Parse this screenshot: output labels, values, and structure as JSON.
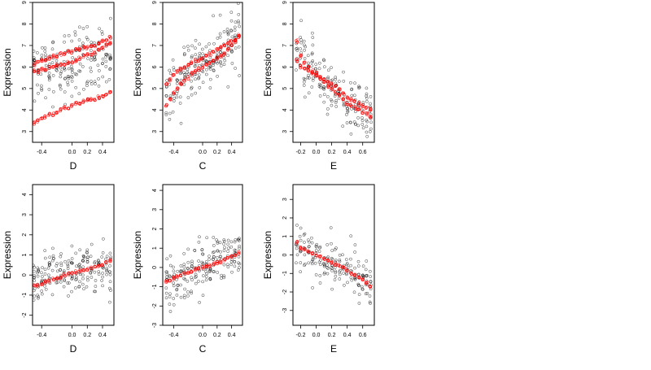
{
  "chart_data": [
    {
      "type": "scatter",
      "xlabel": "D",
      "ylabel": "Expression",
      "xlim": [
        -0.52,
        0.55
      ],
      "ylim": [
        2.5,
        9.0
      ],
      "xticks": [
        -0.4,
        0.0,
        0.2,
        0.4
      ],
      "xtick_labels": [
        "-0.4",
        "0.0",
        "0.2",
        "0.4"
      ],
      "yticks": [
        3,
        4,
        5,
        6,
        7,
        8,
        9
      ],
      "ytick_labels": [
        "3",
        "4",
        "5",
        "6",
        "7",
        "8",
        "9"
      ],
      "x_positions": [
        -0.5,
        -0.45,
        -0.4,
        -0.35,
        -0.3,
        -0.25,
        -0.2,
        -0.15,
        -0.1,
        -0.05,
        0.0,
        0.05,
        0.1,
        0.15,
        0.2,
        0.25,
        0.3,
        0.35,
        0.4,
        0.45,
        0.5
      ],
      "series": [
        {
          "color": "#000000",
          "role": "observed",
          "center": [
            6.0,
            6.0,
            5.9,
            6.0,
            6.0,
            6.0,
            6.1,
            6.0,
            6.0,
            6.1,
            6.0,
            6.0,
            6.2,
            6.3,
            6.2,
            6.3,
            6.4,
            6.3,
            6.5,
            6.2,
            6.6
          ],
          "spread": 1.4
        },
        {
          "color": "#ff0000",
          "role": "fitted",
          "lines": [
            [
              6.1,
              6.2,
              6.3,
              6.3,
              6.4,
              6.5,
              6.5,
              6.6,
              6.6,
              6.7,
              6.7,
              6.8,
              6.8,
              6.9,
              6.9,
              7.0,
              7.0,
              7.1,
              7.2,
              7.3,
              7.4
            ],
            [
              3.4,
              3.5,
              3.6,
              3.7,
              3.8,
              3.8,
              3.9,
              4.0,
              4.1,
              4.1,
              4.2,
              4.3,
              4.3,
              4.4,
              4.5,
              4.5,
              4.5,
              4.6,
              4.6,
              4.7,
              4.8
            ],
            [
              5.8,
              5.8,
              5.9,
              5.9,
              6.0,
              6.0,
              6.1,
              6.1,
              6.1,
              6.2,
              6.2,
              6.3,
              6.4,
              6.5,
              6.6,
              6.6,
              6.7,
              6.8,
              6.9,
              7.0,
              7.1
            ]
          ]
        }
      ]
    },
    {
      "type": "scatter",
      "xlabel": "C",
      "ylabel": "Expression",
      "xlim": [
        -0.55,
        0.55
      ],
      "ylim": [
        2.5,
        9.0
      ],
      "xticks": [
        -0.4,
        0.0,
        0.2,
        0.4
      ],
      "xtick_labels": [
        "-0.4",
        "0.0",
        "0.2",
        "0.4"
      ],
      "yticks": [
        3,
        4,
        5,
        6,
        7,
        8,
        9
      ],
      "ytick_labels": [
        "3",
        "4",
        "5",
        "6",
        "7",
        "8",
        "9"
      ],
      "x_positions": [
        -0.5,
        -0.45,
        -0.4,
        -0.35,
        -0.3,
        -0.25,
        -0.2,
        -0.15,
        -0.1,
        -0.05,
        0.0,
        0.05,
        0.1,
        0.15,
        0.2,
        0.25,
        0.3,
        0.35,
        0.4,
        0.45,
        0.5
      ],
      "series": [
        {
          "color": "#000000",
          "role": "observed",
          "center": [
            4.8,
            4.9,
            5.0,
            5.3,
            5.4,
            5.5,
            5.6,
            5.8,
            5.9,
            6.0,
            6.1,
            6.2,
            6.3,
            6.4,
            6.5,
            6.6,
            6.7,
            6.8,
            7.0,
            7.1,
            7.2
          ],
          "spread": 1.1
        },
        {
          "color": "#ff0000",
          "role": "fitted",
          "lines": [
            [
              4.2,
              4.5,
              4.8,
              5.0,
              5.2,
              5.4,
              5.5,
              5.7,
              5.8,
              5.9,
              6.0,
              6.1,
              6.2,
              6.3,
              6.4,
              6.5,
              6.6,
              6.8,
              7.0,
              7.2,
              7.4
            ],
            [
              5.2,
              5.4,
              5.6,
              5.8,
              5.9,
              6.0,
              6.1,
              6.2,
              6.3,
              6.3,
              6.4,
              6.5,
              6.6,
              6.7,
              6.8,
              6.9,
              7.0,
              7.1,
              7.2,
              7.3,
              7.5
            ]
          ]
        }
      ]
    },
    {
      "type": "scatter",
      "xlabel": "E",
      "ylabel": "Expression",
      "xlim": [
        -0.3,
        0.75
      ],
      "ylim": [
        2.5,
        9.0
      ],
      "xticks": [
        -0.2,
        0.0,
        0.2,
        0.4,
        0.6
      ],
      "xtick_labels": [
        "-0.2",
        "0.0",
        "0.2",
        "0.4",
        "0.6"
      ],
      "yticks": [
        3,
        4,
        5,
        6,
        7,
        8,
        9
      ],
      "ytick_labels": [
        "3",
        "4",
        "5",
        "6",
        "7",
        "8",
        "9"
      ],
      "x_positions": [
        -0.25,
        -0.2,
        -0.15,
        -0.1,
        -0.05,
        0.0,
        0.05,
        0.1,
        0.15,
        0.2,
        0.25,
        0.3,
        0.35,
        0.4,
        0.45,
        0.5,
        0.55,
        0.6,
        0.65,
        0.7
      ],
      "series": [
        {
          "color": "#000000",
          "role": "observed",
          "center": [
            6.8,
            6.4,
            6.2,
            6.0,
            5.8,
            5.6,
            5.4,
            5.2,
            5.1,
            5.0,
            4.8,
            4.6,
            4.5,
            4.3,
            4.2,
            4.1,
            4.0,
            4.0,
            3.9,
            3.8
          ],
          "spread": 1.2
        },
        {
          "color": "#ff0000",
          "role": "fitted",
          "lines": [
            [
              7.2,
              6.5,
              6.2,
              6.0,
              5.8,
              5.7,
              5.5,
              5.3,
              5.1,
              5.0,
              4.8,
              4.7,
              4.5,
              4.3,
              4.2,
              4.1,
              4.0,
              3.9,
              3.8,
              3.7
            ],
            [
              6.3,
              6.0,
              5.9,
              5.8,
              5.7,
              5.6,
              5.5,
              5.4,
              5.3,
              5.2,
              5.1,
              5.0,
              4.8,
              4.6,
              4.5,
              4.4,
              4.3,
              4.2,
              4.1,
              4.0
            ]
          ]
        }
      ]
    },
    {
      "type": "scatter",
      "xlabel": "D",
      "ylabel": "Expression",
      "xlim": [
        -0.52,
        0.55
      ],
      "ylim": [
        -2.5,
        4.5
      ],
      "xticks": [
        -0.4,
        0.0,
        0.2,
        0.4
      ],
      "xtick_labels": [
        "-0.4",
        "0.0",
        "0.2",
        "0.4"
      ],
      "yticks": [
        -2,
        -1,
        0,
        1,
        2,
        3,
        4
      ],
      "ytick_labels": [
        "-2",
        "-1",
        "0",
        "1",
        "2",
        "3",
        "4"
      ],
      "x_positions": [
        -0.5,
        -0.45,
        -0.4,
        -0.35,
        -0.3,
        -0.25,
        -0.2,
        -0.15,
        -0.1,
        -0.05,
        0.0,
        0.05,
        0.1,
        0.15,
        0.2,
        0.25,
        0.3,
        0.35,
        0.4,
        0.45,
        0.5
      ],
      "series": [
        {
          "color": "#000000",
          "role": "observed",
          "center": [
            -0.4,
            -0.4,
            -0.3,
            -0.2,
            -0.2,
            -0.1,
            -0.1,
            0.0,
            0.0,
            0.1,
            0.1,
            0.1,
            0.2,
            0.2,
            0.3,
            0.3,
            0.4,
            0.4,
            0.5,
            0.5,
            0.6
          ],
          "spread": 1.1
        },
        {
          "color": "#ff0000",
          "role": "fitted",
          "lines": [
            [
              -0.55,
              -0.5,
              -0.45,
              -0.35,
              -0.3,
              -0.2,
              -0.15,
              -0.1,
              0.0,
              0.05,
              0.1,
              0.15,
              0.2,
              0.25,
              0.3,
              0.35,
              0.4,
              0.45,
              0.5,
              0.6,
              0.7
            ]
          ]
        }
      ]
    },
    {
      "type": "scatter",
      "xlabel": "C",
      "ylabel": "Expression",
      "xlim": [
        -0.55,
        0.55
      ],
      "ylim": [
        -3.0,
        4.3
      ],
      "xticks": [
        -0.4,
        0.0,
        0.2,
        0.4
      ],
      "xtick_labels": [
        "-0.4",
        "0.0",
        "0.2",
        "0.4"
      ],
      "yticks": [
        -3,
        -2,
        -1,
        0,
        1,
        2,
        3,
        4
      ],
      "ytick_labels": [
        "-3",
        "-2",
        "-1",
        "0",
        "1",
        "2",
        "3",
        "4"
      ],
      "x_positions": [
        -0.5,
        -0.45,
        -0.4,
        -0.35,
        -0.3,
        -0.25,
        -0.2,
        -0.15,
        -0.1,
        -0.05,
        0.0,
        0.05,
        0.1,
        0.15,
        0.2,
        0.25,
        0.3,
        0.35,
        0.4,
        0.45,
        0.5
      ],
      "series": [
        {
          "color": "#000000",
          "role": "observed",
          "center": [
            -0.8,
            -0.7,
            -0.6,
            -0.5,
            -0.4,
            -0.3,
            -0.3,
            -0.2,
            -0.1,
            0.0,
            0.0,
            0.1,
            0.1,
            0.2,
            0.3,
            0.3,
            0.4,
            0.5,
            0.6,
            0.6,
            0.7
          ],
          "spread": 1.1
        },
        {
          "color": "#ff0000",
          "role": "fitted",
          "lines": [
            [
              -0.75,
              -0.65,
              -0.55,
              -0.45,
              -0.4,
              -0.3,
              -0.25,
              -0.2,
              -0.1,
              -0.05,
              0.0,
              0.05,
              0.1,
              0.2,
              0.25,
              0.3,
              0.4,
              0.5,
              0.55,
              0.65,
              0.75
            ]
          ]
        }
      ]
    },
    {
      "type": "scatter",
      "xlabel": "E",
      "ylabel": "Expression",
      "xlim": [
        -0.3,
        0.75
      ],
      "ylim": [
        -3.8,
        3.8
      ],
      "xticks": [
        -0.2,
        0.0,
        0.2,
        0.4,
        0.6
      ],
      "xtick_labels": [
        "-0.2",
        "0.0",
        "0.2",
        "0.4",
        "0.6"
      ],
      "yticks": [
        -3,
        -2,
        -1,
        0,
        1,
        2,
        3
      ],
      "ytick_labels": [
        "-3",
        "-2",
        "-1",
        "0",
        "1",
        "2",
        "3"
      ],
      "x_positions": [
        -0.25,
        -0.2,
        -0.15,
        -0.1,
        -0.05,
        0.0,
        0.05,
        0.1,
        0.15,
        0.2,
        0.25,
        0.3,
        0.35,
        0.4,
        0.45,
        0.5,
        0.55,
        0.6,
        0.65,
        0.7
      ],
      "series": [
        {
          "color": "#000000",
          "role": "observed",
          "center": [
            0.6,
            0.3,
            0.2,
            0.1,
            0.0,
            -0.1,
            -0.2,
            -0.3,
            -0.4,
            -0.5,
            -0.6,
            -0.7,
            -0.8,
            -0.9,
            -1.0,
            -1.1,
            -1.2,
            -1.3,
            -1.4,
            -1.5
          ],
          "spread": 1.1
        },
        {
          "color": "#ff0000",
          "role": "fitted",
          "lines": [
            [
              0.7,
              0.4,
              0.3,
              0.2,
              0.1,
              0.0,
              -0.1,
              -0.2,
              -0.3,
              -0.4,
              -0.5,
              -0.6,
              -0.7,
              -0.8,
              -1.0,
              -1.1,
              -1.2,
              -1.3,
              -1.5,
              -1.7
            ]
          ]
        }
      ]
    }
  ]
}
